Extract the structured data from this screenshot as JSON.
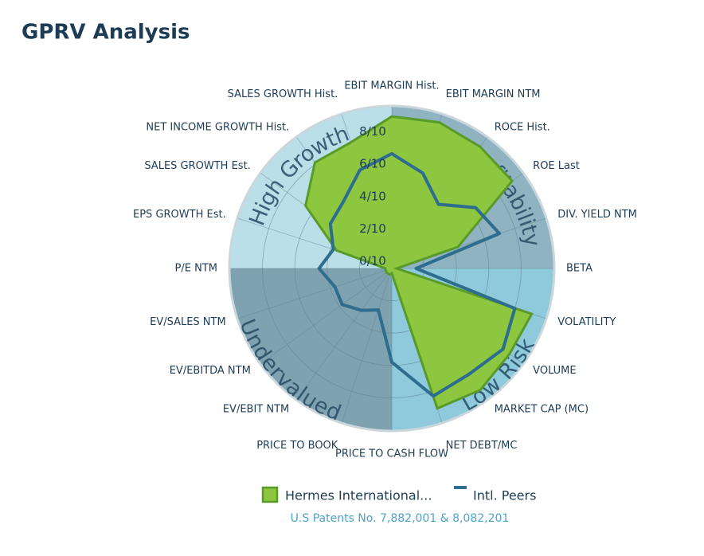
{
  "title": "GPRV Analysis",
  "chart_data": {
    "type": "radar",
    "categories": [
      "EBIT MARGIN Hist.",
      "EBIT MARGIN NTM",
      "ROCE Hist.",
      "ROE  Last",
      "DIV. YIELD NTM",
      "BETA",
      "VOLATILITY",
      "VOLUME",
      "MARKET CAP (MC)",
      "NET DEBT/MC",
      "PRICE TO CASH FLOW",
      "PRICE TO BOOK",
      "EV/EBIT NTM",
      "EV/EBITDA NTM",
      "EV/SALES NTM",
      "P/E NTM",
      "EPS GROWTH Est.",
      "SALES GROWTH Est.",
      "NET INCOME GROWTH Hist.",
      "SALES GROWTH Hist."
    ],
    "series": [
      {
        "name": "Hermes International...",
        "color": "#8dc63f",
        "values": [
          9.4,
          9.5,
          9.3,
          9.2,
          4.3,
          0.3,
          9.1,
          9.0,
          9.3,
          9.1,
          0.3,
          0.4,
          0.4,
          0.4,
          0.4,
          0.4,
          3.6,
          6.6,
          8.1,
          8.2
        ]
      },
      {
        "name": "Intl. Peers",
        "color": "#2e6d8e",
        "values": [
          7.1,
          6.2,
          4.9,
          6.4,
          7.0,
          1.5,
          8.0,
          8.5,
          8.1,
          8.3,
          5.8,
          2.7,
          3.2,
          3.8,
          3.7,
          4.5,
          3.8,
          4.7,
          5.1,
          6.4
        ]
      }
    ],
    "ylim": [
      0,
      10
    ],
    "yticks": [
      {
        "value": 0,
        "label": "0/10"
      },
      {
        "value": 2,
        "label": "2/10"
      },
      {
        "value": 4,
        "label": "4/10"
      },
      {
        "value": 6,
        "label": "6/10"
      },
      {
        "value": 8,
        "label": "8/10"
      }
    ],
    "quadrant_labels": [
      "High Profitability",
      "Low Risk",
      "Undervalued",
      "High Growth"
    ],
    "quadrant_colors": [
      "#8fb3c1",
      "#8ecadb",
      "#7fa2b0",
      "#bbdfe8"
    ],
    "footnote": "U.S Patents No. 7,882,001 & 8,082,201"
  }
}
